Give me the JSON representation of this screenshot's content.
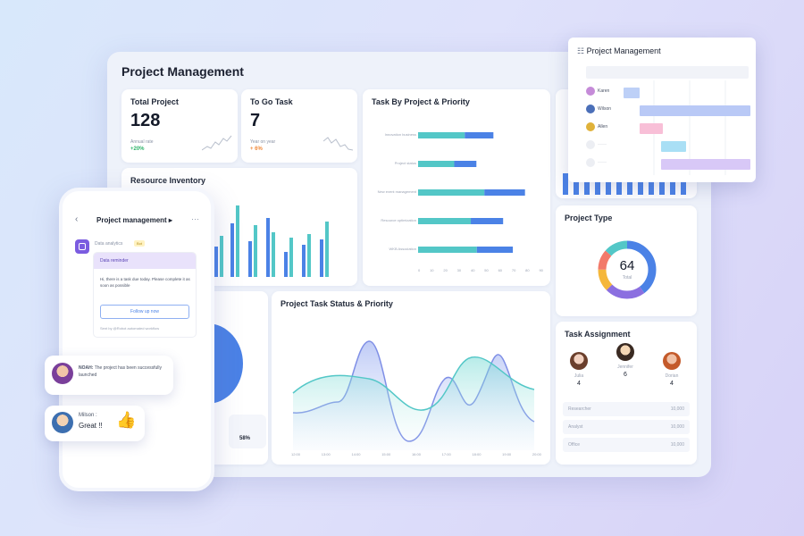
{
  "dashboard": {
    "title": "Project Management",
    "total_project": {
      "label": "Total Project",
      "value": "128",
      "sub": "Annual rate",
      "trend": "+20%"
    },
    "to_go_task": {
      "label": "To Go Task",
      "value": "7",
      "sub": "Year on year",
      "trend": "+ 6%"
    },
    "resource_inventory": {
      "label": "Resource Inventory"
    },
    "task_by_project": {
      "label": "Task By Project & Priority",
      "rows": [
        "Innovation business",
        "Project status",
        "New event management",
        "Resource optimization",
        "WKB Association"
      ],
      "values": [
        0.62,
        0.48,
        0.88,
        0.7,
        0.78
      ],
      "axis": [
        "0",
        "10",
        "20",
        "30",
        "40",
        "50",
        "60",
        "70",
        "80",
        "90"
      ]
    },
    "project_type": {
      "label": "Project Type",
      "value": "64",
      "sub": "Total"
    },
    "status_chart": {
      "label": "Project Task Status & Priority",
      "x_ticks": [
        "12:00",
        "13:00",
        "14:00",
        "15:00",
        "16:00",
        "17:00",
        "18:00",
        "19:00",
        "20:00"
      ]
    },
    "task_assignment": {
      "label": "Task Assignment",
      "people": [
        {
          "name": "Julia",
          "count": "4"
        },
        {
          "name": "Jennifer",
          "count": "6"
        },
        {
          "name": "Dorian",
          "count": "4"
        }
      ],
      "rows": [
        {
          "label": "Researcher",
          "value": "10,000"
        },
        {
          "label": "Analyst",
          "value": "10,000"
        },
        {
          "label": "Office",
          "value": "10,000"
        }
      ]
    },
    "partial_card": {
      "pct": "58%"
    }
  },
  "gantt": {
    "title": "Project Management",
    "people": [
      "Karen",
      "Wilson",
      "Allen",
      "——",
      "——"
    ]
  },
  "mobile": {
    "header": "Project management",
    "sender": "Data analytics",
    "sender_tag": "Bot",
    "card_title": "Data reminder",
    "card_body": "Hi, there is a task due today. Please complete it as soon as possible",
    "button": "Follow up now",
    "footer": "Sent by @Robot automated workflow"
  },
  "chat1": {
    "name": "NOAH:",
    "text": "The project has been successfully launched"
  },
  "chat2": {
    "name": "Milson :",
    "text": "Great !!"
  },
  "colors": {
    "teal": "#53c7c7",
    "blue": "#4b82e6",
    "purple": "#8b6fe0",
    "lavender": "#c9b8f4"
  }
}
